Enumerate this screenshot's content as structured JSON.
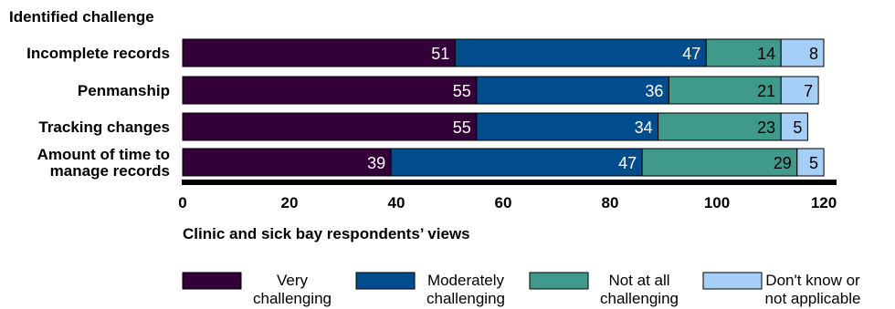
{
  "chart_data": {
    "type": "bar",
    "orientation": "horizontal",
    "stacked": true,
    "ylabel": "Identified challenge",
    "xlabel": "Clinic and sick bay respondents’ views",
    "categories": [
      [
        "Incomplete records"
      ],
      [
        "Penmanship"
      ],
      [
        "Tracking changes"
      ],
      [
        "Amount of time to",
        "manage records"
      ]
    ],
    "series": [
      {
        "name": [
          "Very",
          "challenging"
        ],
        "color": "#33003a",
        "label_color": "#ffffff",
        "values": [
          51,
          55,
          55,
          39
        ]
      },
      {
        "name": [
          "Moderately",
          "challenging"
        ],
        "color": "#004c8c",
        "label_color": "#ffffff",
        "values": [
          47,
          36,
          34,
          47
        ]
      },
      {
        "name": [
          "Not at all",
          "challenging"
        ],
        "color": "#3f9a8c",
        "label_color": "#000000",
        "values": [
          14,
          21,
          23,
          29
        ]
      },
      {
        "name": [
          "Don't know or",
          "not applicable"
        ],
        "color": "#a6cff7",
        "label_color": "#000000",
        "values": [
          8,
          7,
          5,
          5
        ]
      }
    ],
    "xlim": [
      0,
      120
    ],
    "xticks": [
      0,
      20,
      40,
      60,
      80,
      100,
      120
    ],
    "grid": false,
    "legend": "bottom"
  }
}
